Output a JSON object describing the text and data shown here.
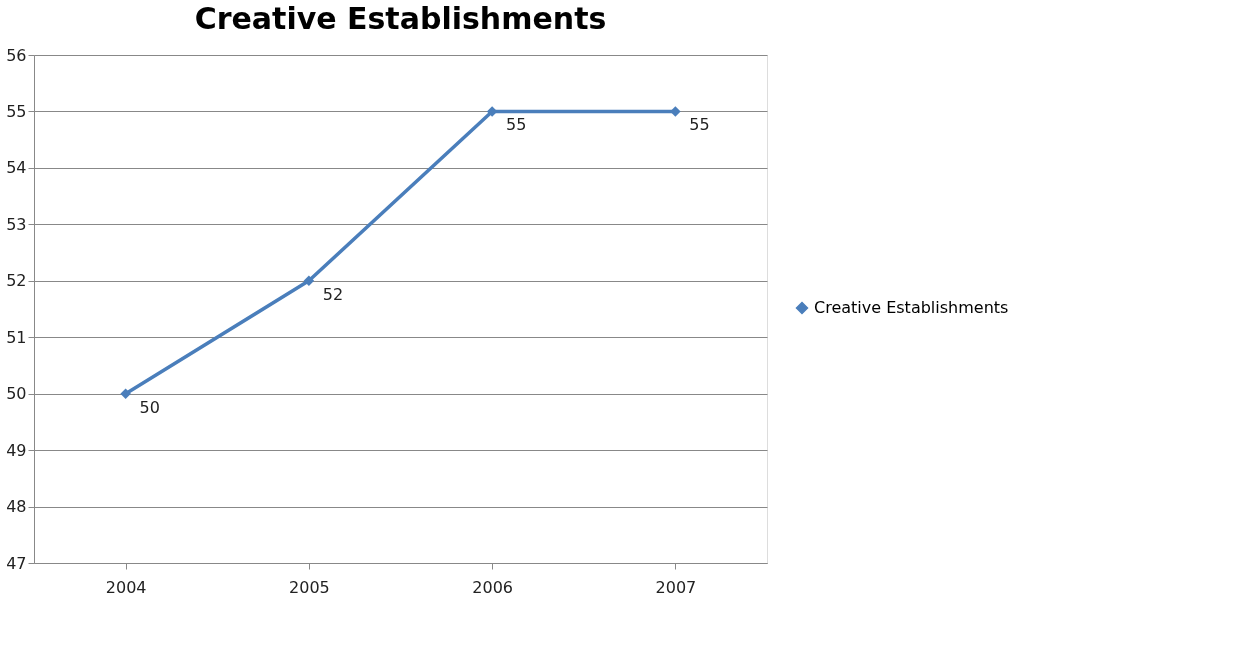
{
  "chart_data": {
    "type": "line",
    "title": "Creative Establishments",
    "categories": [
      "2004",
      "2005",
      "2006",
      "2007"
    ],
    "series": [
      {
        "name": "Creative Establishments",
        "color": "#4a7ebb",
        "values": [
          50,
          52,
          55,
          55
        ]
      }
    ],
    "ylim": [
      47,
      56
    ],
    "yticks": [
      47,
      48,
      49,
      50,
      51,
      52,
      53,
      54,
      55,
      56
    ],
    "grid": "y",
    "legend": "right",
    "marker": "diamond",
    "line_style": "solid",
    "data_labels": true
  }
}
